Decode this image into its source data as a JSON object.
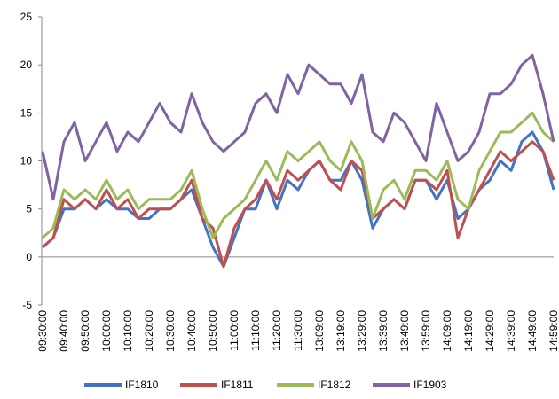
{
  "chart_data": {
    "type": "line",
    "categories": [
      "09:30:00",
      null,
      "09:40:00",
      null,
      "09:50:00",
      null,
      "10:00:00",
      null,
      "10:10:00",
      null,
      "10:20:00",
      null,
      "10:30:00",
      null,
      "10:40:00",
      null,
      "10:50:00",
      null,
      "11:00:00",
      null,
      "11:10:00",
      null,
      "11:20:00",
      null,
      "11:30:00",
      null,
      "13:09:00",
      null,
      "13:19:00",
      null,
      "13:29:00",
      null,
      "13:39:00",
      null,
      "13:49:00",
      null,
      "13:59:00",
      null,
      "14:09:00",
      null,
      "14:19:00",
      null,
      "14:29:00",
      null,
      "14:39:00",
      null,
      "14:49:00",
      null,
      "14:59:00"
    ],
    "series": [
      {
        "name": "IF1810",
        "color": "#4472c4",
        "values": [
          1,
          2,
          5,
          5,
          6,
          5,
          6,
          5,
          5,
          4,
          4,
          5,
          5,
          6,
          7,
          4,
          1,
          -1,
          2,
          5,
          5,
          8,
          5,
          8,
          7,
          9,
          10,
          8,
          8,
          10,
          8,
          3,
          5,
          6,
          5,
          8,
          8,
          6,
          8,
          4,
          5,
          7,
          8,
          10,
          9,
          12,
          13,
          11,
          7
        ]
      },
      {
        "name": "IF1811",
        "color": "#c0504d",
        "values": [
          1,
          2,
          6,
          5,
          6,
          5,
          7,
          5,
          6,
          4,
          5,
          5,
          5,
          6,
          8,
          4,
          3,
          -1,
          3,
          5,
          6,
          8,
          6,
          9,
          8,
          9,
          10,
          8,
          7,
          10,
          9,
          4,
          5,
          6,
          5,
          8,
          8,
          7,
          9,
          2,
          5,
          7,
          9,
          11,
          10,
          11,
          12,
          11,
          8
        ]
      },
      {
        "name": "IF1812",
        "color": "#9bbb59",
        "values": [
          2,
          3,
          7,
          6,
          7,
          6,
          8,
          6,
          7,
          5,
          6,
          6,
          6,
          7,
          9,
          5,
          2,
          4,
          5,
          6,
          8,
          10,
          8,
          11,
          10,
          11,
          12,
          10,
          9,
          12,
          10,
          4,
          7,
          8,
          6,
          9,
          9,
          8,
          10,
          6,
          5,
          9,
          11,
          13,
          13,
          14,
          15,
          13,
          12
        ]
      },
      {
        "name": "IF1903",
        "color": "#8064a2",
        "values": [
          11,
          6,
          12,
          14,
          10,
          12,
          14,
          11,
          13,
          12,
          14,
          16,
          14,
          13,
          17,
          14,
          12,
          11,
          12,
          13,
          16,
          17,
          15,
          19,
          17,
          20,
          19,
          18,
          18,
          16,
          19,
          13,
          12,
          15,
          14,
          12,
          10,
          16,
          13,
          10,
          11,
          13,
          17,
          17,
          18,
          20,
          21,
          17,
          12
        ]
      }
    ],
    "ylim": [
      -5,
      25
    ],
    "yticks": [
      -5,
      0,
      5,
      10,
      15,
      20,
      25
    ],
    "legend": "bottom"
  }
}
